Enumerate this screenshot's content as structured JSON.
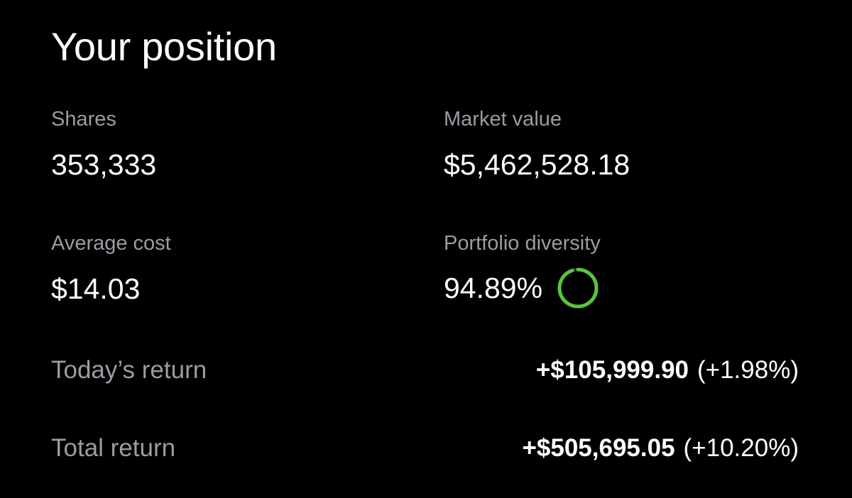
{
  "header": {
    "title": "Your position"
  },
  "stats": {
    "shares_label": "Shares",
    "shares_value": "353,333",
    "market_value_label": "Market value",
    "market_value_value": "$5,462,528.18",
    "average_cost_label": "Average cost",
    "average_cost_value": "$14.03",
    "diversity_label": "Portfolio diversity",
    "diversity_value": "94.89%",
    "diversity_fraction": 0.9489
  },
  "returns": {
    "today_label": "Today’s return",
    "today_amount": "+$105,999.90",
    "today_percent": "(+1.98%)",
    "total_label": "Total return",
    "total_amount": "+$505,695.05",
    "total_percent": "(+10.20%)"
  },
  "colors": {
    "background": "#000000",
    "text_primary": "#ffffff",
    "text_secondary": "#9a9ca3",
    "accent_green": "#5ac53b",
    "ring_track": "#2a2a2a"
  },
  "icons": {
    "diversity_ring": "progress-ring-icon"
  }
}
